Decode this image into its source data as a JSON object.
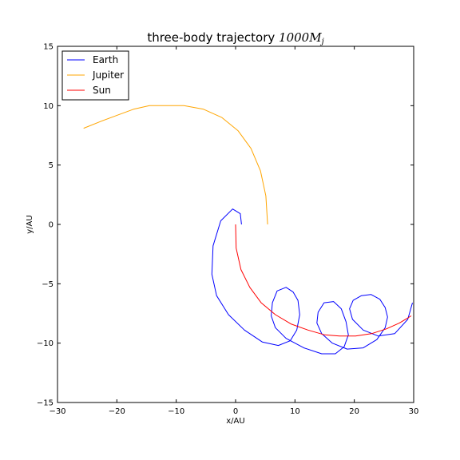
{
  "chart_data": {
    "type": "line",
    "title": "three-body trajectory 1000M_j",
    "title_text": "three-body trajectory ",
    "title_math_base": "1000M",
    "title_math_sub": "j",
    "xlabel": "x/AU",
    "ylabel": "y/AU",
    "xlim": [
      -30,
      30
    ],
    "ylim": [
      -15,
      15
    ],
    "xticks": [
      -30,
      -20,
      -10,
      0,
      10,
      20,
      30
    ],
    "yticks": [
      -15,
      -10,
      -5,
      0,
      5,
      10,
      15
    ],
    "xtick_labels": [
      "−30",
      "−20",
      "−10",
      "0",
      "10",
      "20",
      "30"
    ],
    "ytick_labels": [
      "−15",
      "−10",
      "−5",
      "0",
      "5",
      "10",
      "15"
    ],
    "grid": false,
    "legend_position": "top-left",
    "series": [
      {
        "name": "Earth",
        "color": "#0000ff",
        "x": [
          1.0,
          0.8,
          -0.5,
          -2.5,
          -3.8,
          -4.0,
          -3.2,
          -1.2,
          1.5,
          4.5,
          7.2,
          9.2,
          10.3,
          10.8,
          10.5,
          9.7,
          8.5,
          7.0,
          6.2,
          6.0,
          6.7,
          8.5,
          11.5,
          14.5,
          16.8,
          18.3,
          19.0,
          18.6,
          17.8,
          16.5,
          14.9,
          13.9,
          13.7,
          14.5,
          16.3,
          18.8,
          21.5,
          23.8,
          25.2,
          25.6,
          25.2,
          24.3,
          22.8,
          21.2,
          19.8,
          19.2,
          19.7,
          21.5,
          24.0,
          26.8,
          29.0,
          29.8
        ],
        "y": [
          0.0,
          0.9,
          1.3,
          0.3,
          -1.8,
          -4.2,
          -6.0,
          -7.6,
          -8.9,
          -9.9,
          -10.2,
          -9.8,
          -8.9,
          -7.6,
          -6.4,
          -5.7,
          -5.3,
          -5.6,
          -6.6,
          -7.7,
          -8.7,
          -9.6,
          -10.4,
          -10.9,
          -10.9,
          -10.3,
          -9.3,
          -8.2,
          -7.1,
          -6.5,
          -6.6,
          -7.4,
          -8.3,
          -9.2,
          -10.0,
          -10.5,
          -10.4,
          -9.7,
          -8.7,
          -7.8,
          -7.0,
          -6.3,
          -5.9,
          -6.0,
          -6.4,
          -7.1,
          -8.0,
          -8.9,
          -9.4,
          -9.2,
          -8.0,
          -6.6
        ]
      },
      {
        "name": "Jupiter",
        "color": "#ffa500",
        "x": [
          5.4,
          5.1,
          4.2,
          2.6,
          0.4,
          -2.3,
          -5.4,
          -8.7,
          -11.9,
          -14.5,
          -17.2,
          -19.9,
          -22.6,
          -25.6
        ],
        "y": [
          0.0,
          2.4,
          4.5,
          6.4,
          7.9,
          9.0,
          9.7,
          10.0,
          10.0,
          10.0,
          9.7,
          9.2,
          8.7,
          8.1
        ]
      },
      {
        "name": "Sun",
        "color": "#ff0000",
        "x": [
          0.0,
          0.1,
          0.9,
          2.4,
          4.3,
          6.7,
          9.4,
          12.2,
          15.0,
          17.5,
          20.2,
          22.9,
          25.4,
          27.6,
          29.6
        ],
        "y": [
          0.0,
          -2.0,
          -3.8,
          -5.3,
          -6.6,
          -7.6,
          -8.4,
          -8.9,
          -9.3,
          -9.4,
          -9.4,
          -9.2,
          -8.8,
          -8.3,
          -7.7
        ]
      }
    ]
  }
}
